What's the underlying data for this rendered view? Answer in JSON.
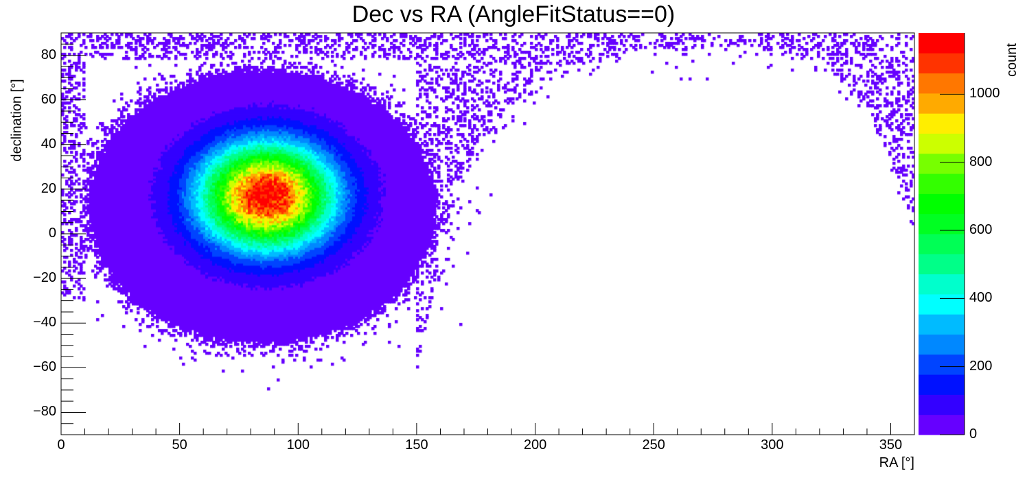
{
  "chart_data": {
    "type": "heatmap",
    "title": "Dec vs RA (AngleFitStatus==0)",
    "xlabel": "RA [°]",
    "ylabel": "declination [°]",
    "zlabel": "count",
    "xlim": [
      0,
      360
    ],
    "ylim": [
      -90,
      90
    ],
    "zlim": [
      0,
      1180
    ],
    "bins": {
      "x": 360,
      "y": 180
    },
    "x_ticks": [
      0,
      50,
      100,
      150,
      200,
      250,
      300,
      350
    ],
    "x_tick_labels": [
      "0",
      "50",
      "100",
      "150",
      "200",
      "250",
      "300",
      "350"
    ],
    "y_ticks": [
      -80,
      -60,
      -40,
      -20,
      0,
      20,
      40,
      60,
      80
    ],
    "y_tick_labels": [
      "−80",
      "−60",
      "−40",
      "−20",
      "0",
      "20",
      "40",
      "60",
      "80"
    ],
    "z_ticks": [
      0,
      200,
      400,
      600,
      800,
      1000
    ],
    "z_tick_labels": [
      "0",
      "200",
      "400",
      "600",
      "800",
      "1000"
    ],
    "peak": {
      "ra": 87,
      "dec": 17,
      "count": 1170,
      "sigma_ra": 19,
      "sigma_dec": 16
    },
    "dense_region": {
      "ra_center": 85,
      "dec_center": 12,
      "ra_halfwidth": 78,
      "dec_halfwidth": 65,
      "background_count_range": [
        1,
        58
      ]
    },
    "sparse_edge_curve": {
      "ra": [
        150,
        165,
        185,
        210,
        240,
        280,
        320,
        340,
        352,
        360
      ],
      "dec": [
        -60,
        20,
        55,
        75,
        84,
        86,
        80,
        60,
        30,
        5
      ]
    },
    "palette": [
      "#6600ff",
      "#3300ff",
      "#0011ff",
      "#0044ff",
      "#0088ff",
      "#00bbff",
      "#00ffff",
      "#00ffcc",
      "#00ff88",
      "#00ff55",
      "#00ff22",
      "#00ff00",
      "#33ff00",
      "#77ff00",
      "#ccff00",
      "#ffee00",
      "#ffaa00",
      "#ff7700",
      "#ff3300",
      "#ff0000"
    ],
    "grid": false
  }
}
